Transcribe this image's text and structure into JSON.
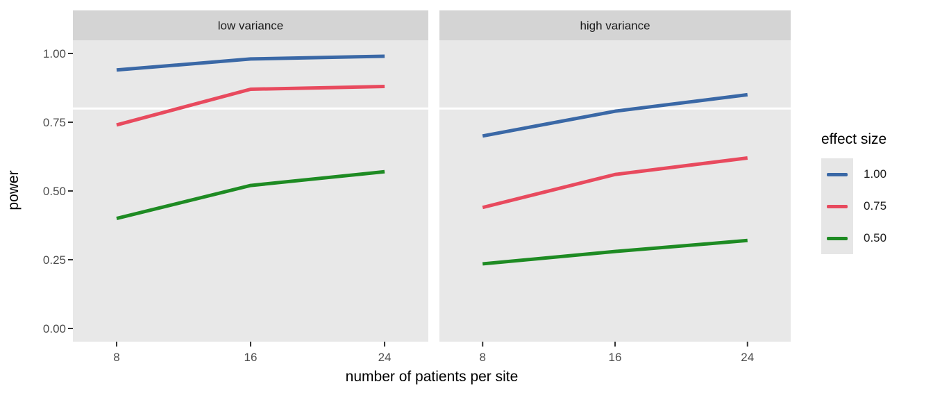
{
  "chart_data": {
    "type": "line",
    "title": "",
    "xlabel": "number of patients per site",
    "ylabel": "power",
    "legend_title": "effect size",
    "legend_position": "right",
    "x": [
      8,
      16,
      24
    ],
    "xtick_labels": [
      "8",
      "16",
      "24"
    ],
    "ytick_values": [
      0,
      0.25,
      0.5,
      0.75,
      1
    ],
    "ytick_labels": [
      "0.00",
      "0.25",
      "0.50",
      "0.75",
      "1.00"
    ],
    "ylim": [
      0,
      1
    ],
    "grid": "off",
    "reference_line_y": 0.8,
    "facets": [
      {
        "label": "low variance",
        "series": [
          {
            "name": "1.00",
            "color": "#3A68A6",
            "values": [
              0.94,
              0.98,
              0.99
            ]
          },
          {
            "name": "0.75",
            "color": "#E84A5E",
            "values": [
              0.74,
              0.87,
              0.88
            ]
          },
          {
            "name": "0.50",
            "color": "#1E8B23",
            "values": [
              0.4,
              0.52,
              0.57
            ]
          }
        ]
      },
      {
        "label": "high variance",
        "series": [
          {
            "name": "1.00",
            "color": "#3A68A6",
            "values": [
              0.7,
              0.79,
              0.85
            ]
          },
          {
            "name": "0.75",
            "color": "#E84A5E",
            "values": [
              0.44,
              0.56,
              0.62
            ]
          },
          {
            "name": "0.50",
            "color": "#1E8B23",
            "values": [
              0.235,
              0.28,
              0.32
            ]
          }
        ]
      }
    ],
    "legend": [
      {
        "label": "1.00",
        "color": "#3A68A6"
      },
      {
        "label": "0.75",
        "color": "#E84A5E"
      },
      {
        "label": "0.50",
        "color": "#1E8B23"
      }
    ],
    "colors": {
      "background": "#FFFFFF",
      "panel_bg": "#E8E8E8",
      "strip_bg": "#D4D4D4",
      "strip_text": "#1A1A1A",
      "axis_text": "#4D4D4D",
      "tick_mark": "#333333",
      "reference_line": "#FFFFFF",
      "title_text": "#000000"
    }
  }
}
